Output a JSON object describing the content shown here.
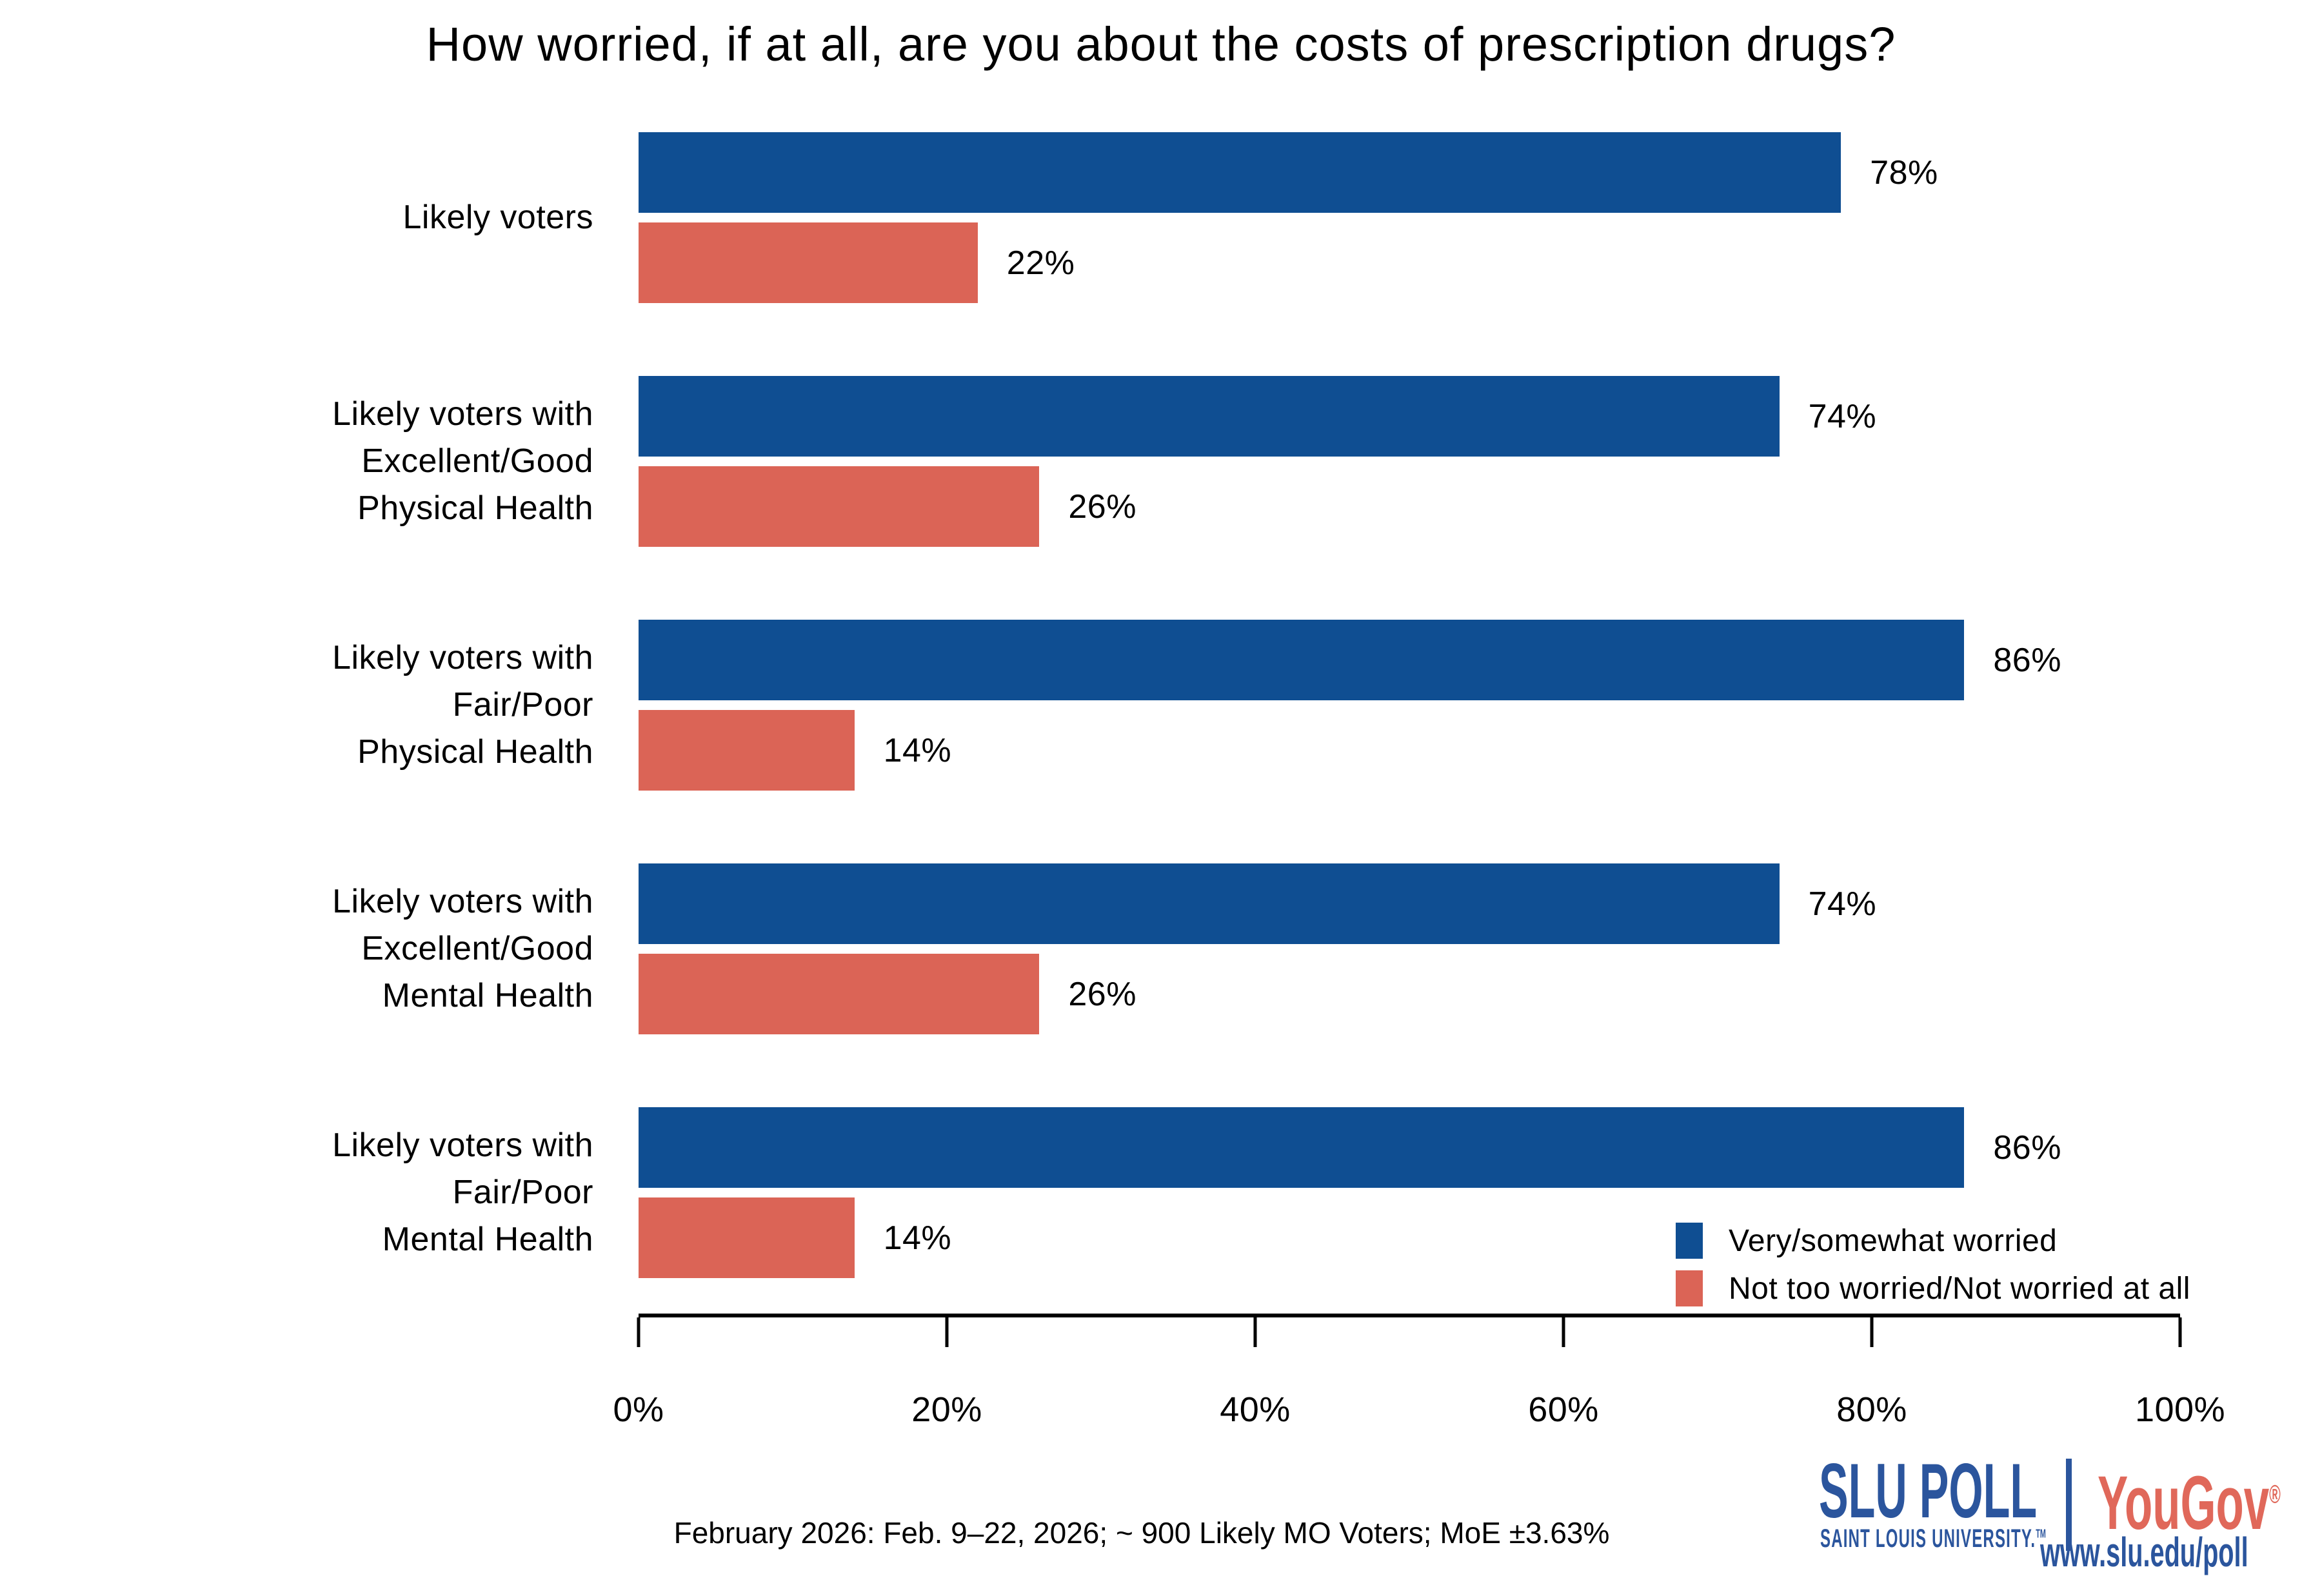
{
  "title": "How worried, if at all, are you about the costs of prescription drugs?",
  "colors": {
    "bar_blue": "#0F4E92",
    "bar_red": "#DB6456",
    "slu_blue": "#2B559D",
    "yougov_red": "#E0685A"
  },
  "chart_data": {
    "type": "bar",
    "orientation": "horizontal",
    "title": "How worried, if at all, are you about the costs of prescription drugs?",
    "xlabel": "",
    "ylabel": "",
    "xlim": [
      0,
      100
    ],
    "x_axis": {
      "ticks": [
        "0%",
        "20%",
        "40%",
        "60%",
        "80%",
        "100%"
      ],
      "tick_values": [
        0,
        20,
        40,
        60,
        80,
        100
      ],
      "grid": false
    },
    "legend": {
      "position": "lower right",
      "entries": [
        {
          "label": "Very/somewhat worried",
          "color": "#0F4E92"
        },
        {
          "label": "Not too worried/Not worried at all",
          "color": "#DB6456"
        }
      ]
    },
    "series": [
      {
        "name": "Very/somewhat worried",
        "values": [
          78,
          74,
          86,
          74,
          86
        ]
      },
      {
        "name": "Not too worried/Not worried at all",
        "values": [
          22,
          26,
          14,
          26,
          14
        ]
      }
    ],
    "groups": [
      {
        "category": "Likely voters",
        "worried": 78,
        "worried_label": "78%",
        "not_worried": 22,
        "not_worried_label": "22%"
      },
      {
        "category": "Likely voters with\nExcellent/Good\nPhysical Health",
        "worried": 74,
        "worried_label": "74%",
        "not_worried": 26,
        "not_worried_label": "26%"
      },
      {
        "category": "Likely voters with\nFair/Poor\nPhysical Health",
        "worried": 86,
        "worried_label": "86%",
        "not_worried": 14,
        "not_worried_label": "14%"
      },
      {
        "category": "Likely voters with\nExcellent/Good\nMental Health",
        "worried": 74,
        "worried_label": "74%",
        "not_worried": 26,
        "not_worried_label": "26%"
      },
      {
        "category": "Likely voters with\nFair/Poor\nMental Health",
        "worried": 86,
        "worried_label": "86%",
        "not_worried": 14,
        "not_worried_label": "14%"
      }
    ]
  },
  "footer": {
    "note": "February 2026: Feb. 9–22, 2026; ~ 900 Likely MO Voters; MoE ±3.63%"
  },
  "branding": {
    "slu_poll": "SLU POLL",
    "slu_sub": "SAINT LOUIS UNIVERSITY.",
    "slu_tm": "TM",
    "yougov": "YouGov",
    "yougov_reg": "®",
    "url": "www.slu.edu/poll"
  }
}
